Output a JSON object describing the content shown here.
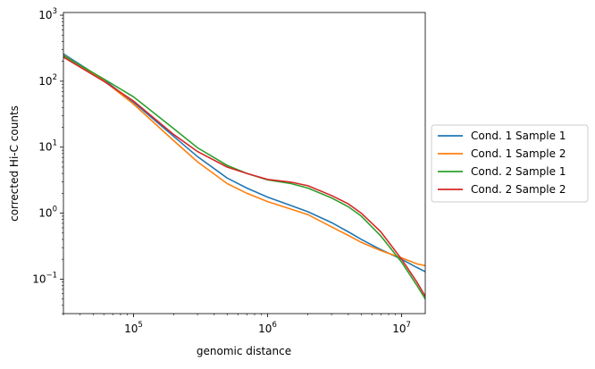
{
  "chart_data": {
    "type": "line",
    "title": "",
    "xlabel": "genomic distance",
    "ylabel": "corrected Hi-C counts",
    "xscale": "log",
    "yscale": "log",
    "xlim": [
      30000,
      15000000
    ],
    "ylim": [
      0.03,
      1100
    ],
    "grid": false,
    "legend_placement": "outside right",
    "x_ticks": [
      {
        "value": 100000,
        "base": "10",
        "exp": "5"
      },
      {
        "value": 1000000,
        "base": "10",
        "exp": "6"
      },
      {
        "value": 10000000,
        "base": "10",
        "exp": "7"
      }
    ],
    "y_ticks": [
      {
        "value": 0.1,
        "base": "10",
        "exp": "−1"
      },
      {
        "value": 1,
        "base": "10",
        "exp": "0"
      },
      {
        "value": 10,
        "base": "10",
        "exp": "1"
      },
      {
        "value": 100,
        "base": "10",
        "exp": "2"
      },
      {
        "value": 1000,
        "base": "10",
        "exp": "3"
      }
    ],
    "series": [
      {
        "name": "Cond. 1 Sample 1",
        "color": "#1f77b4",
        "x": [
          30000,
          60000,
          100000,
          200000,
          300000,
          500000,
          700000,
          1000000,
          1500000,
          2000000,
          3000000,
          4000000,
          5000000,
          7000000,
          10000000,
          13000000,
          15000000
        ],
        "y": [
          260,
          105,
          48,
          14.5,
          7.2,
          3.4,
          2.4,
          1.75,
          1.3,
          1.05,
          0.72,
          0.52,
          0.4,
          0.28,
          0.2,
          0.15,
          0.13
        ]
      },
      {
        "name": "Cond. 1 Sample 2",
        "color": "#ff7f0e",
        "x": [
          30000,
          60000,
          100000,
          200000,
          300000,
          500000,
          700000,
          1000000,
          1500000,
          2000000,
          3000000,
          4000000,
          5000000,
          7000000,
          10000000,
          13000000,
          15000000
        ],
        "y": [
          250,
          102,
          45,
          12.5,
          6.0,
          2.8,
          2.0,
          1.5,
          1.15,
          0.95,
          0.62,
          0.46,
          0.36,
          0.27,
          0.21,
          0.17,
          0.16
        ]
      },
      {
        "name": "Cond. 2 Sample 1",
        "color": "#2ca02c",
        "x": [
          30000,
          60000,
          100000,
          200000,
          300000,
          500000,
          700000,
          1000000,
          1500000,
          2000000,
          3000000,
          4000000,
          5000000,
          7000000,
          10000000,
          13000000,
          15000000
        ],
        "y": [
          245,
          108,
          58,
          19,
          9.8,
          5.3,
          4.0,
          3.2,
          2.8,
          2.4,
          1.7,
          1.25,
          0.9,
          0.45,
          0.18,
          0.08,
          0.05
        ]
      },
      {
        "name": "Cond. 2 Sample 2",
        "color": "#d62728",
        "x": [
          30000,
          60000,
          100000,
          200000,
          300000,
          500000,
          700000,
          1000000,
          1500000,
          2000000,
          3000000,
          4000000,
          5000000,
          7000000,
          10000000,
          13000000,
          15000000
        ],
        "y": [
          232,
          100,
          50,
          15.5,
          8.6,
          5.0,
          4.0,
          3.25,
          2.95,
          2.6,
          1.85,
          1.38,
          1.0,
          0.52,
          0.2,
          0.09,
          0.055
        ]
      }
    ]
  }
}
